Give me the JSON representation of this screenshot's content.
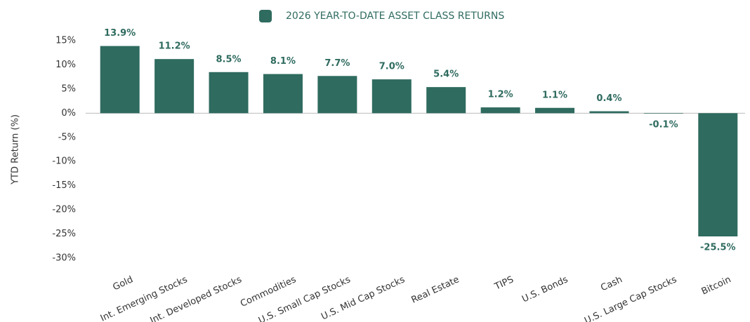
{
  "chart_data": {
    "type": "bar",
    "series": [
      {
        "name": "2026 YEAR-TO-DATE ASSET CLASS RETURNS",
        "color": "#2f6b5f",
        "values": [
          13.9,
          11.2,
          8.5,
          8.1,
          7.7,
          7.0,
          5.4,
          1.2,
          1.1,
          0.4,
          -0.1,
          -25.5
        ],
        "value_labels": [
          "13.9%",
          "11.2%",
          "8.5%",
          "8.1%",
          "7.7%",
          "7.0%",
          "5.4%",
          "1.2%",
          "1.1%",
          "0.4%",
          "-0.1%",
          "-25.5%"
        ]
      }
    ],
    "categories": [
      "Gold",
      "Int. Emerging Stocks",
      "Int. Developed Stocks",
      "Commodities",
      "U.S. Small Cap Stocks",
      "U.S. Mid Cap Stocks",
      "Real Estate",
      "TIPS",
      "U.S. Bonds",
      "Cash",
      "U.S. Large Cap Stocks",
      "Bitcoin"
    ],
    "y_label": "YTD Return (%)",
    "ylim": [
      -30,
      15
    ],
    "yticks": [
      {
        "value": 15,
        "label": "15%"
      },
      {
        "value": 10,
        "label": "10%"
      },
      {
        "value": 5,
        "label": "5%"
      },
      {
        "value": 0,
        "label": "0%"
      },
      {
        "value": -5,
        "label": "-5%"
      },
      {
        "value": -10,
        "label": "-10%"
      },
      {
        "value": -15,
        "label": "-15%"
      },
      {
        "value": -20,
        "label": "-20%"
      },
      {
        "value": -25,
        "label": "-25%"
      },
      {
        "value": -30,
        "label": "-30%"
      }
    ],
    "grid": false,
    "legend": "top"
  }
}
